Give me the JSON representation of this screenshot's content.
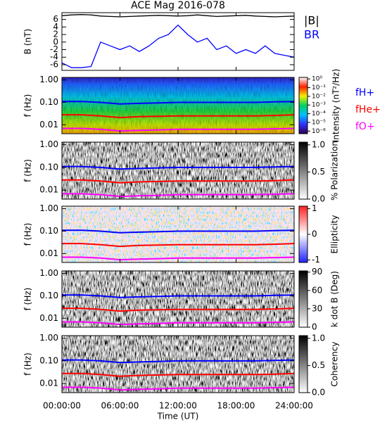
{
  "chart_data": [
    {
      "type": "line",
      "title": "ACE Mag 2016-078",
      "ylabel": "B (nT)",
      "xlim": [
        0,
        24
      ],
      "ylim": [
        -7.5,
        7.8
      ],
      "yticks": [
        -6,
        -4,
        -2,
        0,
        2,
        4,
        6
      ],
      "x": [
        0,
        1,
        2,
        3,
        4,
        5,
        6,
        7,
        8,
        9,
        10,
        11,
        12,
        13,
        14,
        15,
        16,
        17,
        18,
        19,
        20,
        21,
        22,
        23,
        24
      ],
      "series": [
        {
          "name": "|B|",
          "color": "#000000",
          "values": [
            7.0,
            7.2,
            7.3,
            7.2,
            6.9,
            6.8,
            6.7,
            6.8,
            6.9,
            7.0,
            7.1,
            7.0,
            6.9,
            7.0,
            7.2,
            7.0,
            6.8,
            6.9,
            7.0,
            7.1,
            6.9,
            6.8,
            6.7,
            6.8,
            6.9
          ]
        },
        {
          "name": "BR",
          "color": "#0000ff",
          "values": [
            -5.5,
            -6.8,
            -6.8,
            -6.5,
            0,
            -1,
            -2,
            -1,
            -2.5,
            -1,
            1,
            2,
            4.5,
            2,
            0,
            1,
            -2,
            -1,
            -3,
            -2,
            -3,
            -1,
            -3,
            -3.5,
            -4
          ]
        }
      ]
    },
    {
      "type": "heatmap",
      "ylabel": "f (Hz)",
      "xlim": [
        0,
        24
      ],
      "ylog": true,
      "ylim": [
        0.004,
        1.3
      ],
      "yticks": [
        {
          "value": 1,
          "label": "1.00"
        },
        {
          "value": 0.1,
          "label": "0.10"
        },
        {
          "value": 0.01,
          "label": "0.01"
        }
      ],
      "colorbar": {
        "label": "Intensity (nT²/Hz)",
        "scale": "log",
        "lim": [
          5e-07,
          1.5
        ],
        "colors": [
          "#2a0050",
          "#3030ff",
          "#00c0ff",
          "#00d060",
          "#f0f000",
          "#ff2000",
          "#ffffff"
        ],
        "ticks": [
          {
            "value": 1,
            "label": "10⁰"
          },
          {
            "value": 0.1,
            "label": "10⁻¹"
          },
          {
            "value": 0.01,
            "label": "10⁻²"
          },
          {
            "value": 0.001,
            "label": "10⁻³"
          },
          {
            "value": 0.0001,
            "label": "10⁻⁴"
          },
          {
            "value": 1e-05,
            "label": "10⁻⁵"
          },
          {
            "value": 1e-06,
            "label": "10⁻⁶"
          }
        ]
      },
      "x": [
        0,
        2,
        4,
        6,
        8,
        10,
        12,
        14,
        16,
        18,
        20,
        22,
        24
      ],
      "series": [
        {
          "name": "fH+",
          "color": "#0000ff",
          "values": [
            0.11,
            0.11,
            0.1,
            0.085,
            0.09,
            0.095,
            0.1,
            0.1,
            0.1,
            0.1,
            0.1,
            0.105,
            0.11
          ]
        },
        {
          "name": "fHe+",
          "color": "#ff0000",
          "values": [
            0.028,
            0.028,
            0.025,
            0.021,
            0.023,
            0.024,
            0.025,
            0.025,
            0.025,
            0.025,
            0.025,
            0.026,
            0.028
          ]
        },
        {
          "name": "fO+",
          "color": "#ff00ff",
          "values": [
            0.0069,
            0.0069,
            0.0063,
            0.0053,
            0.0056,
            0.0059,
            0.0063,
            0.0063,
            0.0063,
            0.0063,
            0.0063,
            0.0066,
            0.0069
          ]
        }
      ]
    },
    {
      "type": "heatmap",
      "ylabel": "f (Hz)",
      "xlim": [
        0,
        24
      ],
      "ylog": true,
      "ylim": [
        0.004,
        1.3
      ],
      "yticks": [
        {
          "value": 1,
          "label": "1.00"
        },
        {
          "value": 0.1,
          "label": "0.10"
        },
        {
          "value": 0.01,
          "label": "0.01"
        }
      ],
      "colorbar": {
        "label": "% Polarization",
        "scale": "linear",
        "lim": [
          0,
          1.05
        ],
        "colors": [
          "#ffffff",
          "#000000"
        ],
        "ticks": [
          {
            "value": 0,
            "label": "0.0"
          },
          {
            "value": 0.5,
            "label": "0.5"
          },
          {
            "value": 1,
            "label": "1.0"
          }
        ]
      }
    },
    {
      "type": "heatmap",
      "ylabel": "f (Hz)",
      "xlim": [
        0,
        24
      ],
      "ylog": true,
      "ylim": [
        0.004,
        1.3
      ],
      "yticks": [
        {
          "value": 1,
          "label": "1.00"
        },
        {
          "value": 0.1,
          "label": "0.10"
        },
        {
          "value": 0.01,
          "label": "0.01"
        }
      ],
      "colorbar": {
        "label": "Ellipticity",
        "scale": "linear",
        "lim": [
          -1.1,
          1.1
        ],
        "colors": [
          "#2020ff",
          "#ffffff",
          "#ff2020"
        ],
        "ticks": [
          1,
          0,
          -1
        ]
      }
    },
    {
      "type": "heatmap",
      "ylabel": "f (Hz)",
      "xlim": [
        0,
        24
      ],
      "ylog": true,
      "ylim": [
        0.004,
        1.3
      ],
      "yticks": [
        {
          "value": 1,
          "label": "1.00"
        },
        {
          "value": 0.1,
          "label": "0.10"
        },
        {
          "value": 0.01,
          "label": "0.01"
        }
      ],
      "colorbar": {
        "label": "k dot B (Deg)",
        "scale": "linear",
        "lim": [
          0,
          92
        ],
        "colors": [
          "#ffffff",
          "#000000"
        ],
        "ticks": [
          90,
          60,
          30,
          0
        ]
      }
    },
    {
      "type": "heatmap",
      "ylabel": "f (Hz)",
      "xlim": [
        0,
        24
      ],
      "ylog": true,
      "ylim": [
        0.004,
        1.3
      ],
      "yticks": [
        {
          "value": 1,
          "label": "1.00"
        },
        {
          "value": 0.1,
          "label": "0.10"
        },
        {
          "value": 0.01,
          "label": "0.01"
        }
      ],
      "colorbar": {
        "label": "Coherency",
        "scale": "linear",
        "lim": [
          0,
          1.05
        ],
        "colors": [
          "#ffffff",
          "#000000"
        ],
        "ticks": [
          {
            "value": 0,
            "label": "0.0"
          },
          {
            "value": 0.5,
            "label": "0.5"
          },
          {
            "value": 1,
            "label": "1.0"
          }
        ]
      },
      "xlabel": "Time (UT)",
      "xticks": [
        {
          "value": 0,
          "label": "00:00:00"
        },
        {
          "value": 6,
          "label": "06:00:00"
        },
        {
          "value": 12,
          "label": "12:00:00"
        },
        {
          "value": 18,
          "label": "18:00:00"
        },
        {
          "value": 24,
          "label": "24:00:00"
        }
      ]
    }
  ]
}
